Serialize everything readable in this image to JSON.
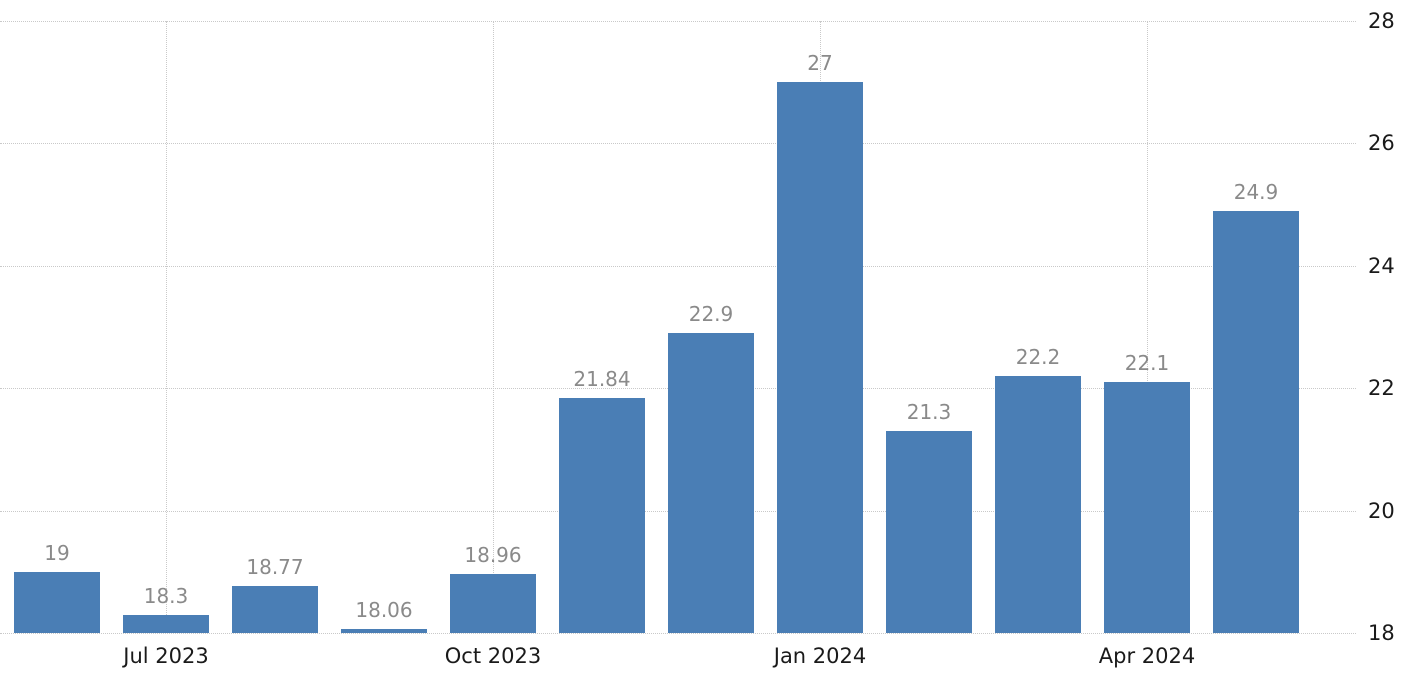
{
  "chart_data": {
    "type": "bar",
    "title": "",
    "xlabel": "",
    "ylabel": "",
    "values": [
      19,
      18.3,
      18.77,
      18.06,
      18.96,
      21.84,
      22.9,
      27,
      21.3,
      22.2,
      22.1,
      24.9
    ],
    "value_labels": [
      "19",
      "18.3",
      "18.77",
      "18.06",
      "18.96",
      "21.84",
      "22.9",
      "27",
      "21.3",
      "22.2",
      "22.1",
      "24.9"
    ],
    "xticks": [
      {
        "bar_index": 1,
        "label": "Jul 2023"
      },
      {
        "bar_index": 4,
        "label": "Oct 2023"
      },
      {
        "bar_index": 7,
        "label": "Jan 2024"
      },
      {
        "bar_index": 10,
        "label": "Apr 2024"
      }
    ],
    "ytick_labels": [
      "18",
      "20",
      "22",
      "24",
      "26",
      "28"
    ],
    "yticks": [
      18,
      20,
      22,
      24,
      26,
      28
    ],
    "ylim": [
      18,
      28
    ],
    "grid": true,
    "legend_position": "none",
    "y_axis_side": "right",
    "colors": {
      "bar": "#4a7eb5",
      "value_label": "#8a8a8a",
      "axis_label": "#1a1a1a",
      "gridline": "#c9c9c9",
      "background": "#ffffff"
    }
  }
}
